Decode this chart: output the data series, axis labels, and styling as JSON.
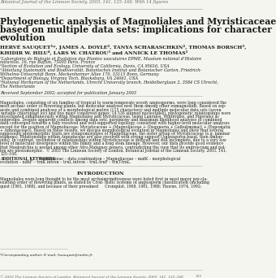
{
  "header_line": "Botanical Journal of the Linnean Society, 2003, 141, 125–166. With 14 figures",
  "title_line1": "Phylogenetic analysis of Magnoliales and Myristicaceae",
  "title_line2": "based on multiple data sets: implications for character",
  "title_line3": "evolution",
  "author_line1": "HERVÉ SAUQUET¹*, JAMES A. DOYLE², TANYA SCHARASCHKIN², THOMAS BORSCH³,",
  "author_line2": "KHIDIR W. HILU⁴, LARS W. CHATROU⁵ and ANNICK LE THOMAS¹",
  "aff1": "¹Laboratoire de Biologie et Évolution des Plantes vasculaires EPME, Muséum national d’Histoire",
  "aff1b": "naturelle, 16, rue Buffon, 75005 Paris, France",
  "aff2": "²Section of Evolution and Ecology, University of California, Davis, CA 95616, USA",
  "aff3": "³Abteilung Systematik und Biodiversität, Botanisches Institut und Botanischer Garten, Friedrich-",
  "aff3b": "Wilhelms-Universität Bonn, Meckenheimer Allee 170, 53115 Bonn, Germany",
  "aff4": "⁴Department of Biology, Virginia Tech, Blacksburg, VA 24061, USA",
  "aff5": "⁵National Herbarium of the Netherlands, Utrecht University branch, Heidelberglaan 2, 3584 CS Utrecht,",
  "aff5b": "The Netherlands",
  "received": "Received September 2002; accepted for publication January 2003",
  "abstract_lines": [
    "Magnoliales, consisting of six families of tropical to warm-temperate woody angiosperms, were long considered the",
    "most archaic order of flowering plants, but molecular analyses nest them among other eumagnoliids. Based on sep-",
    "arate and combined analyses of a morphological matrix (115 characters) and multiple molecular data sets (seven",
    "variable chloroplast loci and five more conserved genes; 14 536 aligned nucleotides), phylogenetic relationships were",
    "investigated simultaneously within Magnoliales and Myristicaceae, using Laurales, Winterales, and Piperales as",
    "outgroups. Despite apparent conflicts among data sets, parsimony and maximum likelihood analyses of combined",
    "data converged towards a fully resolved and well-supported topology, consistent with higher-level molecular analyses",
    "except for the position of Magnoliaceae: Myristicaceae + (Magnoliaceae + (Degeneria + Galbulimima)) + (Eupomatia",
    "+ Annonaceae)). Based on these results, we discuss morphological evolution in Magnoliales and show that several",
    "supposedly plesiomorphic traits are synapomorphies of Magnoliaceae, the sister group of Myristicaceae (e.g. laminar",
    "stamens). Relationships within Annonaceae are also resolved with strong support (Anaxagorea basal, then ambav-",
    "oids). In contrast, resolution of relationships within Myristicaceae is difficult and still incomplete, due to a very low",
    "level of molecular divergence within the family and a long stem lineage. However, our data provide good evidence",
    "that Mauloutchia is nested among other Afro-Malagasy genera, contradicting the view that its androecium and pol-",
    "len are plesiomorphic.  © 2003 The Linnean Society of London, Botanical Journal of the Linnean Society, 2003, 141,",
    "125–166."
  ],
  "kw_bold": "ADDITIONAL KEYWORDS:",
  "kw_rest_line1": " Annonaceae – data combination – Magnoliaceae – matK – morphological",
  "kw_rest_line2": "evolution – ndhF – trnK intron – trnL intron – trnL-trnF – trnT-trnL.",
  "intro_header": "INTRODUCTION",
  "intro_c1_lines": [
    "Magnoliales were long thought to be the most archaic",
    "existing order of flowering plants, as stated by Cron-",
    "quist (1981, 1988), and because of their presumed"
  ],
  "intro_c2_lines": [
    "primitiveness were listed first in most major pre-cla-",
    "distic systems of angiosperm classification (including",
    "Cronquist, 1968, 1981, 1988; Thorne, 1974, 1992;"
  ],
  "footnote": "*Corresponding author. E-mail: hsauquet@mnhn.fr",
  "footer": "© 2003 The Linnean Society of London, Botanical Journal of the Linnean Society, 2003, 141, 125–166",
  "footer_page": "125",
  "bg_color": "#f5f5f0",
  "text_color": "#1a1a1a",
  "gray_color": "#666666",
  "light_gray": "#999999"
}
